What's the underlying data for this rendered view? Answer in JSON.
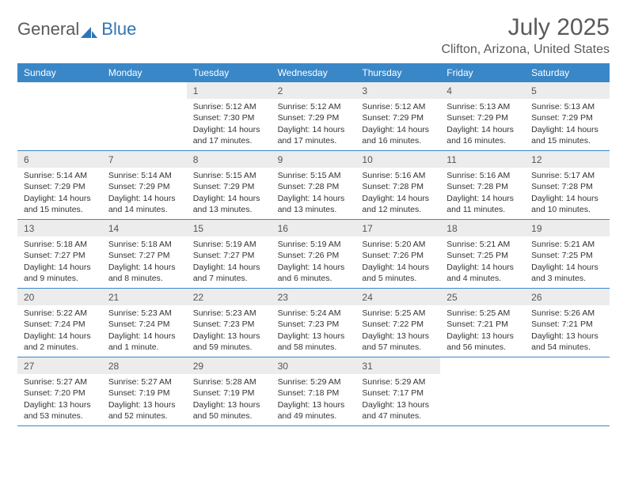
{
  "logo": {
    "text1": "General",
    "text2": "Blue"
  },
  "title": "July 2025",
  "location": "Clifton, Arizona, United States",
  "colors": {
    "header_bg": "#3a87c8",
    "header_text": "#ffffff",
    "daynum_bg": "#ececec",
    "border": "#3a87c8",
    "title_color": "#5a5a5a",
    "logo_accent": "#2f75b5"
  },
  "dayNames": [
    "Sunday",
    "Monday",
    "Tuesday",
    "Wednesday",
    "Thursday",
    "Friday",
    "Saturday"
  ],
  "weeks": [
    [
      null,
      null,
      {
        "n": "1",
        "sr": "5:12 AM",
        "ss": "7:30 PM",
        "dl": "14 hours and 17 minutes."
      },
      {
        "n": "2",
        "sr": "5:12 AM",
        "ss": "7:29 PM",
        "dl": "14 hours and 17 minutes."
      },
      {
        "n": "3",
        "sr": "5:12 AM",
        "ss": "7:29 PM",
        "dl": "14 hours and 16 minutes."
      },
      {
        "n": "4",
        "sr": "5:13 AM",
        "ss": "7:29 PM",
        "dl": "14 hours and 16 minutes."
      },
      {
        "n": "5",
        "sr": "5:13 AM",
        "ss": "7:29 PM",
        "dl": "14 hours and 15 minutes."
      }
    ],
    [
      {
        "n": "6",
        "sr": "5:14 AM",
        "ss": "7:29 PM",
        "dl": "14 hours and 15 minutes."
      },
      {
        "n": "7",
        "sr": "5:14 AM",
        "ss": "7:29 PM",
        "dl": "14 hours and 14 minutes."
      },
      {
        "n": "8",
        "sr": "5:15 AM",
        "ss": "7:29 PM",
        "dl": "14 hours and 13 minutes."
      },
      {
        "n": "9",
        "sr": "5:15 AM",
        "ss": "7:28 PM",
        "dl": "14 hours and 13 minutes."
      },
      {
        "n": "10",
        "sr": "5:16 AM",
        "ss": "7:28 PM",
        "dl": "14 hours and 12 minutes."
      },
      {
        "n": "11",
        "sr": "5:16 AM",
        "ss": "7:28 PM",
        "dl": "14 hours and 11 minutes."
      },
      {
        "n": "12",
        "sr": "5:17 AM",
        "ss": "7:28 PM",
        "dl": "14 hours and 10 minutes."
      }
    ],
    [
      {
        "n": "13",
        "sr": "5:18 AM",
        "ss": "7:27 PM",
        "dl": "14 hours and 9 minutes."
      },
      {
        "n": "14",
        "sr": "5:18 AM",
        "ss": "7:27 PM",
        "dl": "14 hours and 8 minutes."
      },
      {
        "n": "15",
        "sr": "5:19 AM",
        "ss": "7:27 PM",
        "dl": "14 hours and 7 minutes."
      },
      {
        "n": "16",
        "sr": "5:19 AM",
        "ss": "7:26 PM",
        "dl": "14 hours and 6 minutes."
      },
      {
        "n": "17",
        "sr": "5:20 AM",
        "ss": "7:26 PM",
        "dl": "14 hours and 5 minutes."
      },
      {
        "n": "18",
        "sr": "5:21 AM",
        "ss": "7:25 PM",
        "dl": "14 hours and 4 minutes."
      },
      {
        "n": "19",
        "sr": "5:21 AM",
        "ss": "7:25 PM",
        "dl": "14 hours and 3 minutes."
      }
    ],
    [
      {
        "n": "20",
        "sr": "5:22 AM",
        "ss": "7:24 PM",
        "dl": "14 hours and 2 minutes."
      },
      {
        "n": "21",
        "sr": "5:23 AM",
        "ss": "7:24 PM",
        "dl": "14 hours and 1 minute."
      },
      {
        "n": "22",
        "sr": "5:23 AM",
        "ss": "7:23 PM",
        "dl": "13 hours and 59 minutes."
      },
      {
        "n": "23",
        "sr": "5:24 AM",
        "ss": "7:23 PM",
        "dl": "13 hours and 58 minutes."
      },
      {
        "n": "24",
        "sr": "5:25 AM",
        "ss": "7:22 PM",
        "dl": "13 hours and 57 minutes."
      },
      {
        "n": "25",
        "sr": "5:25 AM",
        "ss": "7:21 PM",
        "dl": "13 hours and 56 minutes."
      },
      {
        "n": "26",
        "sr": "5:26 AM",
        "ss": "7:21 PM",
        "dl": "13 hours and 54 minutes."
      }
    ],
    [
      {
        "n": "27",
        "sr": "5:27 AM",
        "ss": "7:20 PM",
        "dl": "13 hours and 53 minutes."
      },
      {
        "n": "28",
        "sr": "5:27 AM",
        "ss": "7:19 PM",
        "dl": "13 hours and 52 minutes."
      },
      {
        "n": "29",
        "sr": "5:28 AM",
        "ss": "7:19 PM",
        "dl": "13 hours and 50 minutes."
      },
      {
        "n": "30",
        "sr": "5:29 AM",
        "ss": "7:18 PM",
        "dl": "13 hours and 49 minutes."
      },
      {
        "n": "31",
        "sr": "5:29 AM",
        "ss": "7:17 PM",
        "dl": "13 hours and 47 minutes."
      },
      null,
      null
    ]
  ],
  "labels": {
    "sunrise": "Sunrise:",
    "sunset": "Sunset:",
    "daylight": "Daylight:"
  }
}
